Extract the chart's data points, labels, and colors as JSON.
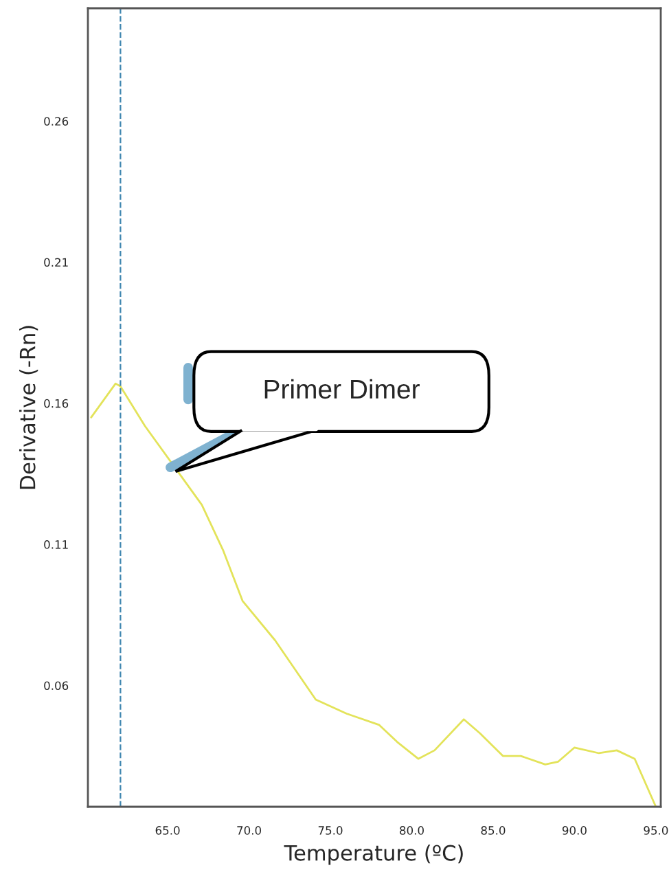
{
  "chart_data": {
    "type": "line",
    "xlabel": "Temperature (ºC)",
    "ylabel": "Derivative (-Rn)",
    "x": [
      60.3,
      61.8,
      62.1,
      63.6,
      65.6,
      67.1,
      68.4,
      69.6,
      71.6,
      74.1,
      76.0,
      78.0,
      79.1,
      80.4,
      81.4,
      83.2,
      84.2,
      85.6,
      86.7,
      88.2,
      89.0,
      90.0,
      91.5,
      92.6,
      93.7,
      95.0
    ],
    "series": [
      {
        "color": "#e3e35a",
        "values": [
          0.155,
          0.167,
          0.166,
          0.152,
          0.136,
          0.124,
          0.108,
          0.09,
          0.076,
          0.055,
          0.05,
          0.046,
          0.04,
          0.034,
          0.037,
          0.048,
          0.043,
          0.035,
          0.035,
          0.032,
          0.033,
          0.038,
          0.036,
          0.037,
          0.034,
          0.017
        ]
      }
    ],
    "xlim": [
      60.1,
      95.3
    ],
    "ylim": [
      0.017,
      0.3
    ],
    "xticks": [
      {
        "value": 65,
        "label": "65.0"
      },
      {
        "value": 70,
        "label": "70.0"
      },
      {
        "value": 75,
        "label": "75.0"
      },
      {
        "value": 80,
        "label": "80.0"
      },
      {
        "value": 85,
        "label": "85.0"
      },
      {
        "value": 90,
        "label": "90.0"
      },
      {
        "value": 95,
        "label": "95.0"
      }
    ],
    "yticks": [
      0.06,
      0.11,
      0.16,
      0.21,
      0.26
    ],
    "ref_lines": [
      {
        "axis": "x",
        "value": 62.1,
        "color": "#3f86b0",
        "line_style": "dashed"
      }
    ],
    "annotations": [
      "Primer Dimer"
    ],
    "grid": false,
    "legend": false,
    "marker": "none",
    "line_style": "solid"
  }
}
